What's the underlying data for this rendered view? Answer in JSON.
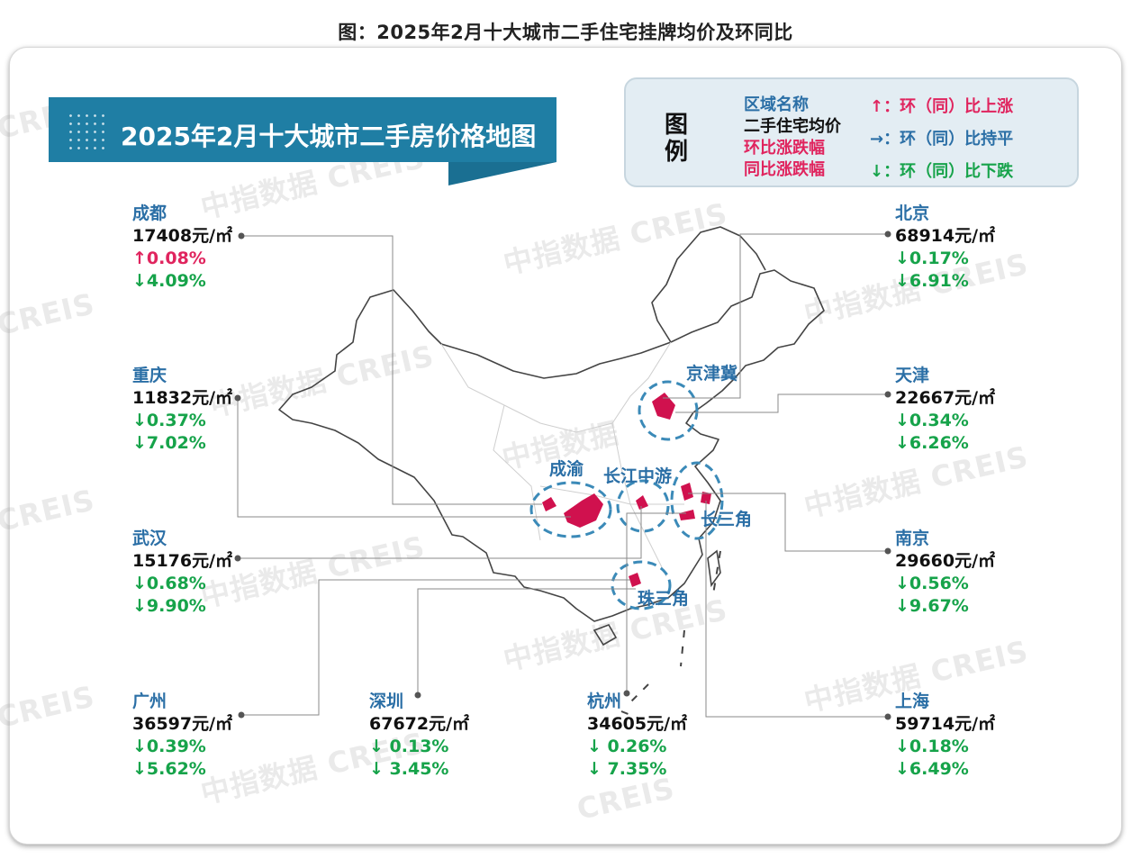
{
  "caption": "图：2025年2月十大城市二手住宅挂牌均价及环同比",
  "banner_title": "2025年2月十大城市二手房价格地图",
  "legend": {
    "heading_top": "图",
    "heading_bottom": "例",
    "entry_region": "区域名称",
    "entry_price": "二手住宅均价",
    "entry_mom": "环比涨跌幅",
    "entry_yoy": "同比涨跌幅",
    "up_text": "↑：环（同）比上涨",
    "flat_text": "→：环（同）比持平",
    "down_text": "↓：环（同）比下跌",
    "colors": {
      "region": "#2b6fa6",
      "up": "#e0245e",
      "flat": "#2b6fa6",
      "down": "#16a34a"
    }
  },
  "regions": [
    "京津冀",
    "成渝",
    "长江中游",
    "长三角",
    "珠三角"
  ],
  "cities": [
    {
      "name": "成都",
      "price": "17408元/㎡",
      "mom": "↑0.08%",
      "yoy": "↓4.09%",
      "mom_dir": "up",
      "yoy_dir": "down"
    },
    {
      "name": "重庆",
      "price": "11832元/㎡",
      "mom": "↓0.37%",
      "yoy": "↓7.02%",
      "mom_dir": "down",
      "yoy_dir": "down"
    },
    {
      "name": "武汉",
      "price": "15176元/㎡",
      "mom": "↓0.68%",
      "yoy": "↓9.90%",
      "mom_dir": "down",
      "yoy_dir": "down"
    },
    {
      "name": "广州",
      "price": "36597元/㎡",
      "mom": "↓0.39%",
      "yoy": "↓5.62%",
      "mom_dir": "down",
      "yoy_dir": "down"
    },
    {
      "name": "深圳",
      "price": "67672元/㎡",
      "mom": "↓ 0.13%",
      "yoy": "↓ 3.45%",
      "mom_dir": "down",
      "yoy_dir": "down"
    },
    {
      "name": "杭州",
      "price": "34605元/㎡",
      "mom": "↓ 0.26%",
      "yoy": "↓ 7.35%",
      "mom_dir": "down",
      "yoy_dir": "down"
    },
    {
      "name": "北京",
      "price": "68914元/㎡",
      "mom": "↓0.17%",
      "yoy": "↓6.91%",
      "mom_dir": "down",
      "yoy_dir": "down"
    },
    {
      "name": "天津",
      "price": "22667元/㎡",
      "mom": "↓0.34%",
      "yoy": "↓6.26%",
      "mom_dir": "down",
      "yoy_dir": "down"
    },
    {
      "name": "南京",
      "price": "29660元/㎡",
      "mom": "↓0.56%",
      "yoy": "↓9.67%",
      "mom_dir": "down",
      "yoy_dir": "down"
    },
    {
      "name": "上海",
      "price": "59714元/㎡",
      "mom": "↓0.18%",
      "yoy": "↓6.49%",
      "mom_dir": "down",
      "yoy_dir": "down"
    }
  ],
  "watermark": {
    "cn": "中指数据",
    "en": "CREIS"
  }
}
